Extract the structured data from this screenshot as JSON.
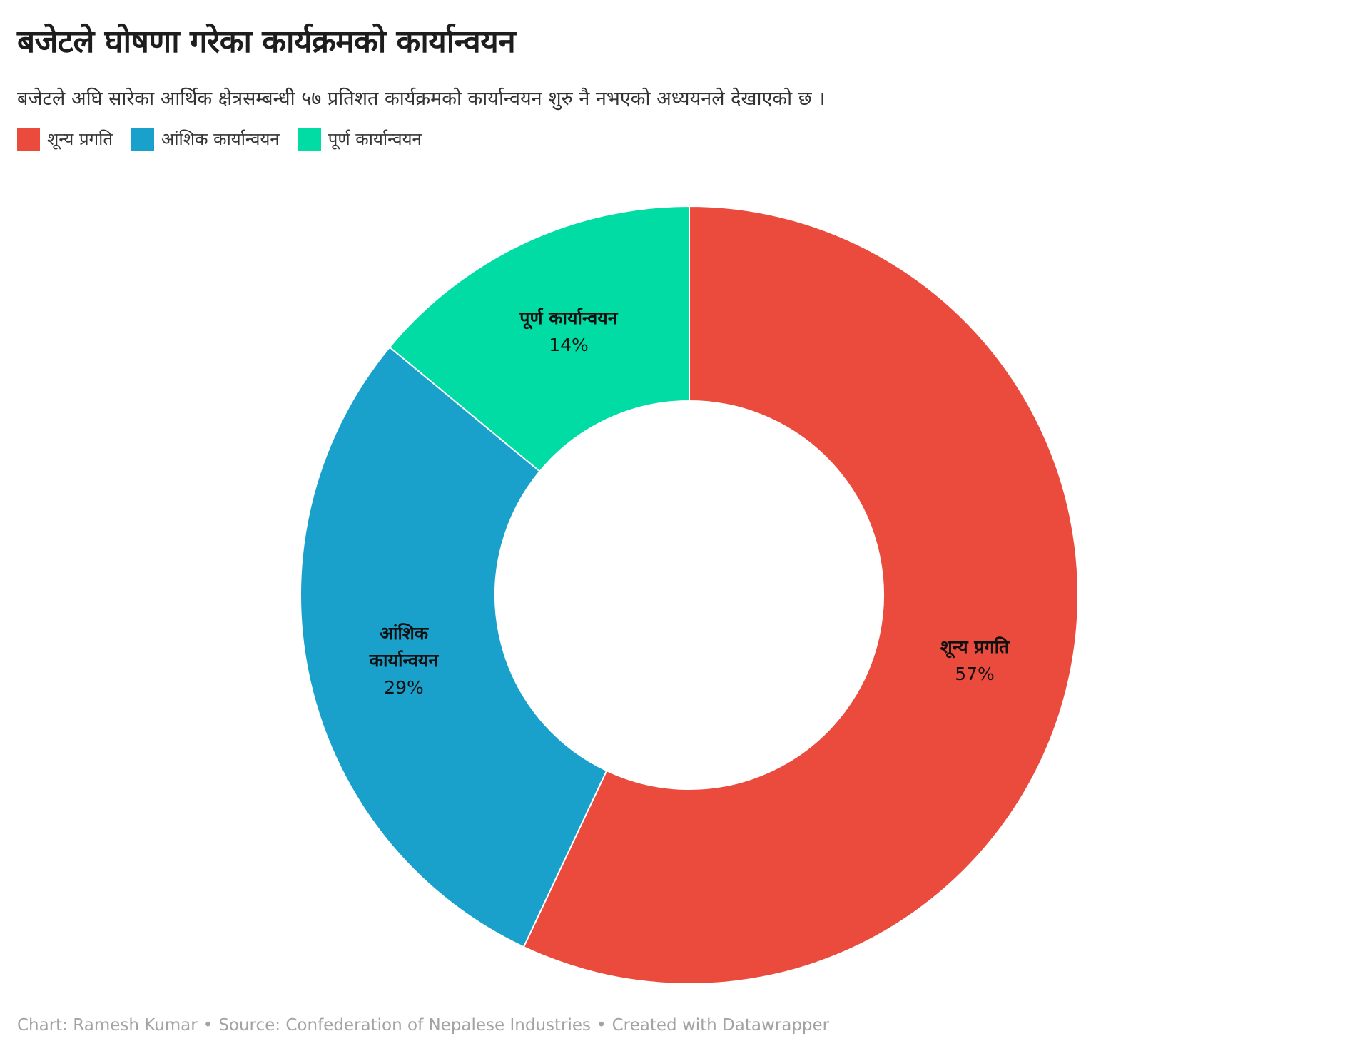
{
  "header": {
    "title": "बजेटले घोषणा गरेका कार्यक्रमको कार्यान्वयन",
    "subtitle": "बजेटले अघि सारेका आर्थिक क्षेत्रसम्बन्धी ५७ प्रतिशत कार्यक्रमको कार्यान्वयन शुरु नै नभएको अध्ययनले देखाएको छ ।"
  },
  "legend": [
    {
      "label": "शून्य प्रगति",
      "color": "#ea4b3c"
    },
    {
      "label": "आंशिक कार्यान्वयन",
      "color": "#19a1cc"
    },
    {
      "label": "पूर्ण कार्यान्वयन",
      "color": "#00dca4"
    }
  ],
  "chart_data": {
    "type": "pie",
    "donut": true,
    "title": "बजेटले घोषणा गरेका कार्यक्रमको कार्यान्वयन",
    "categories": [
      "शून्य प्रगति",
      "आंशिक कार्यान्वयन",
      "पूर्ण कार्यान्वयन"
    ],
    "values": [
      57,
      29,
      14
    ],
    "value_labels": [
      "57%",
      "29%",
      "14%"
    ],
    "colors": [
      "#ea4b3c",
      "#19a1cc",
      "#00dca4"
    ],
    "legend_position": "top-left"
  },
  "footer": {
    "chart_credit": "Chart: Ramesh Kumar",
    "source": "Source: Confederation of Nepalese Industries",
    "tool": "Created with Datawrapper",
    "separator": "•"
  }
}
